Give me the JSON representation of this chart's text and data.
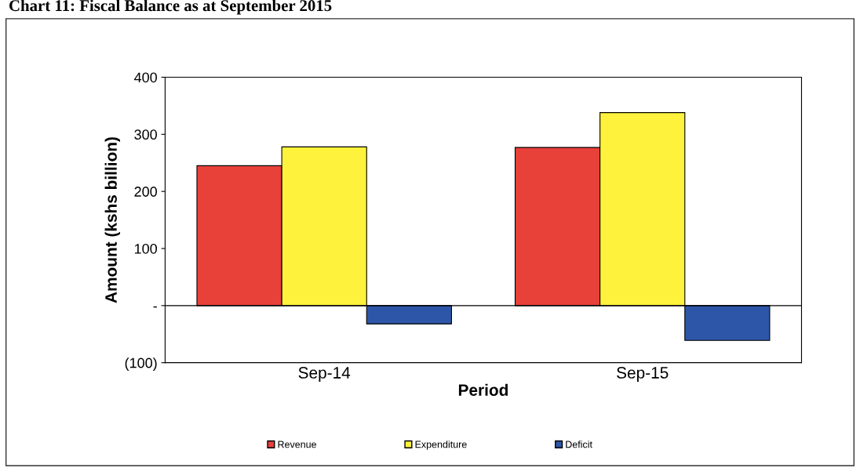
{
  "chart_data": {
    "type": "bar",
    "title": "Chart 11: Fiscal Balance as at September 2015",
    "xlabel": "Period",
    "ylabel": "Amount (kshs billion)",
    "categories": [
      "Sep-14",
      "Sep-15"
    ],
    "series": [
      {
        "name": "Revenue",
        "color": "#e8413a",
        "values": [
          245,
          277
        ]
      },
      {
        "name": "Expenditure",
        "color": "#fef23c",
        "values": [
          278,
          338
        ]
      },
      {
        "name": "Deficit",
        "color": "#2e56a8",
        "values": [
          -32,
          -61
        ]
      }
    ],
    "ylim": [
      -100,
      400
    ],
    "yticks": [
      {
        "value": -100,
        "label": "(100)"
      },
      {
        "value": 0,
        "label": "-"
      },
      100,
      200,
      300,
      400
    ],
    "ref_lines": [
      {
        "axis": "y",
        "value": 0,
        "color": "#000000"
      }
    ],
    "grid": false,
    "legend": "bottom"
  }
}
